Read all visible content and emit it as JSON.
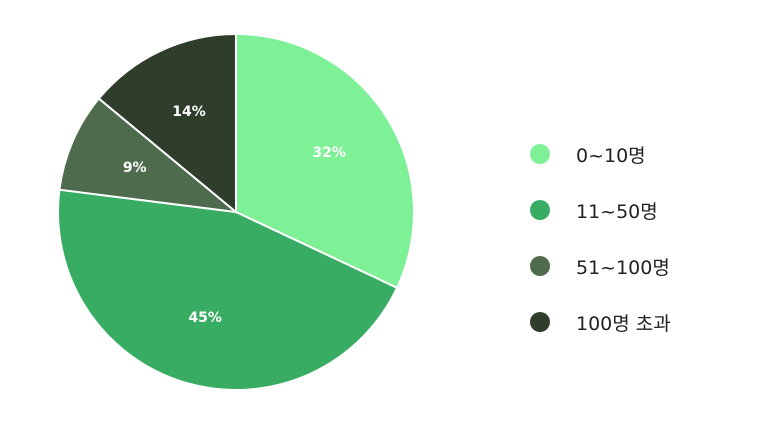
{
  "chart_data": {
    "type": "pie",
    "title": "",
    "categories": [
      "0~10명",
      "11~50명",
      "51~100명",
      "100명 초과"
    ],
    "values": [
      32,
      45,
      9,
      14
    ],
    "value_labels": [
      "32%",
      "45%",
      "9%",
      "14%"
    ],
    "colors": [
      "#7ef095",
      "#39ac63",
      "#4e6b4d",
      "#2f3e2b"
    ],
    "start_angle_deg": 0,
    "direction": "clockwise",
    "legend_position": "right"
  }
}
